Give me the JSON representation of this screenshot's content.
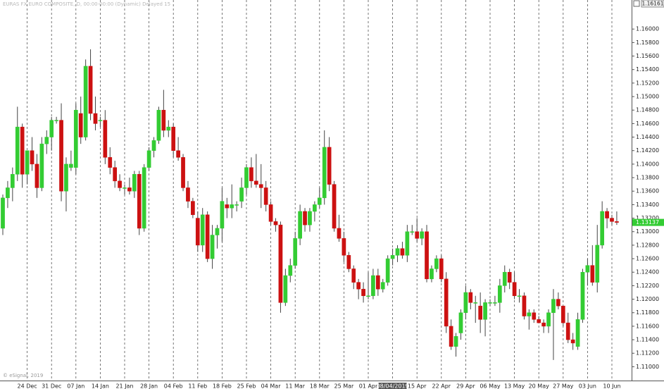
{
  "chart_data": {
    "type": "candlestick",
    "header": "EURAS FX EURO COMPOSITE, D, 00:00-00:00 (Dynamic) Delayed 15",
    "top_right_label": "1.16161",
    "copyright": "© eSignal, 2019",
    "last_price": 1.13137,
    "up_color": "#33cc33",
    "down_color": "#cc1111",
    "ylim": [
      1.109,
      1.1643
    ],
    "yticks": [
      {
        "value": 1.11,
        "label": "1.11000"
      },
      {
        "value": 1.112,
        "label": "1.11200"
      },
      {
        "value": 1.114,
        "label": "1.11400"
      },
      {
        "value": 1.116,
        "label": "1.11600"
      },
      {
        "value": 1.118,
        "label": "1.11800"
      },
      {
        "value": 1.12,
        "label": "1.12000"
      },
      {
        "value": 1.122,
        "label": "1.12200"
      },
      {
        "value": 1.124,
        "label": "1.12400"
      },
      {
        "value": 1.126,
        "label": "1.12600"
      },
      {
        "value": 1.128,
        "label": "1.12800"
      },
      {
        "value": 1.13,
        "label": "1.13000"
      },
      {
        "value": 1.132,
        "label": "1.13200"
      },
      {
        "value": 1.134,
        "label": "1.13400"
      },
      {
        "value": 1.136,
        "label": "1.13600"
      },
      {
        "value": 1.138,
        "label": "1.13800"
      },
      {
        "value": 1.14,
        "label": "1.14000"
      },
      {
        "value": 1.142,
        "label": "1.14200"
      },
      {
        "value": 1.144,
        "label": "1.14400"
      },
      {
        "value": 1.146,
        "label": "1.14600"
      },
      {
        "value": 1.148,
        "label": "1.14800"
      },
      {
        "value": 1.15,
        "label": "1.15000"
      },
      {
        "value": 1.152,
        "label": "1.15200"
      },
      {
        "value": 1.154,
        "label": "1.15400"
      },
      {
        "value": 1.156,
        "label": "1.15600"
      },
      {
        "value": 1.158,
        "label": "1.15800"
      },
      {
        "value": 1.16,
        "label": "1.16000"
      }
    ],
    "highlighted_category": "08/04/2019",
    "categories": [
      null,
      null,
      null,
      null,
      null,
      "24 Dec",
      null,
      null,
      null,
      null,
      "31 Dec",
      null,
      null,
      null,
      null,
      "07 Jan",
      null,
      null,
      null,
      null,
      "14 Jan",
      null,
      null,
      null,
      null,
      "21 Jan",
      null,
      null,
      null,
      null,
      "28 Jan",
      null,
      null,
      null,
      null,
      "04 Feb",
      null,
      null,
      null,
      null,
      "11 Feb",
      null,
      null,
      null,
      null,
      "18 Feb",
      null,
      null,
      null,
      null,
      "25 Feb",
      null,
      null,
      null,
      null,
      "04 Mar",
      null,
      null,
      null,
      null,
      "11 Mar",
      null,
      null,
      null,
      null,
      "18 Mar",
      null,
      null,
      null,
      null,
      "25 Mar",
      null,
      null,
      null,
      null,
      "01 Apr",
      null,
      null,
      null,
      null,
      "08/04/2019",
      null,
      null,
      null,
      null,
      "15 Apr",
      null,
      null,
      null,
      null,
      "22 Apr",
      null,
      null,
      null,
      null,
      "29 Apr",
      null,
      null,
      null,
      null,
      "06 May",
      null,
      null,
      null,
      null,
      "13 May",
      null,
      null,
      null,
      null,
      "20 May",
      null,
      null,
      null,
      null,
      "27 May",
      null,
      null,
      null,
      null,
      "03 Jun",
      null,
      null,
      null,
      null,
      "10 Jun",
      null
    ],
    "open": [
      1.1305,
      1.135,
      1.1365,
      1.1385,
      1.1455,
      1.1385,
      1.142,
      1.14,
      1.1365,
      1.143,
      1.144,
      1.1465,
      1.1465,
      1.136,
      1.1395,
      1.1395,
      1.1475,
      1.144,
      1.1545,
      1.1475,
      1.1465,
      1.1465,
      1.141,
      1.1395,
      1.1375,
      1.1365,
      1.1365,
      1.136,
      1.1385,
      1.1305,
      1.1395,
      1.142,
      1.1435,
      1.148,
      1.145,
      1.1455,
      1.142,
      1.141,
      1.1365,
      1.1345,
      1.132,
      1.128,
      1.1325,
      1.126,
      1.1295,
      1.1305,
      1.134,
      1.1335,
      1.134,
      1.1345,
      1.1365,
      1.1395,
      1.1375,
      1.137,
      1.1365,
      1.134,
      1.1315,
      1.131,
      1.1195,
      1.1235,
      1.125,
      1.129,
      1.133,
      1.131,
      1.133,
      1.134,
      1.135,
      1.1425,
      1.137,
      1.1305,
      1.129,
      1.1265,
      1.1245,
      1.1225,
      1.1215,
      1.1205,
      1.1205,
      1.1235,
      1.1215,
      1.1225,
      1.126,
      1.1265,
      1.1275,
      1.1265,
      1.13,
      1.13,
      1.129,
      1.13,
      1.123,
      1.1245,
      1.126,
      1.123,
      1.116,
      1.113,
      1.115,
      1.118,
      1.121,
      1.1195,
      1.119,
      1.117,
      1.1195,
      1.1195,
      1.1195,
      1.122,
      1.124,
      1.1225,
      1.1205,
      1.1205,
      1.1175,
      1.118,
      1.117,
      1.1165,
      1.116,
      1.118,
      1.12,
      1.119,
      1.1165,
      1.114,
      1.113,
      1.117,
      1.124,
      1.125,
      1.1225,
      1.128,
      1.133,
      1.132,
      1.1315
    ],
    "high": [
      1.1355,
      1.1375,
      1.1395,
      1.1485,
      1.146,
      1.142,
      1.144,
      1.1415,
      1.144,
      1.145,
      1.147,
      1.147,
      1.149,
      1.141,
      1.142,
      1.149,
      1.15,
      1.1555,
      1.157,
      1.15,
      1.147,
      1.148,
      1.1425,
      1.1405,
      1.1385,
      1.137,
      1.138,
      1.139,
      1.139,
      1.14,
      1.1425,
      1.144,
      1.1485,
      1.151,
      1.1465,
      1.146,
      1.144,
      1.1415,
      1.1375,
      1.135,
      1.133,
      1.1335,
      1.133,
      1.131,
      1.131,
      1.1365,
      1.135,
      1.137,
      1.1345,
      1.138,
      1.14,
      1.141,
      1.1415,
      1.14,
      1.1375,
      1.1345,
      1.132,
      1.1315,
      1.1245,
      1.126,
      1.13,
      1.134,
      1.1335,
      1.1335,
      1.1345,
      1.1365,
      1.145,
      1.144,
      1.1375,
      1.1325,
      1.13,
      1.127,
      1.125,
      1.123,
      1.1225,
      1.124,
      1.1245,
      1.1245,
      1.123,
      1.1265,
      1.1275,
      1.128,
      1.1285,
      1.131,
      1.131,
      1.132,
      1.1305,
      1.131,
      1.125,
      1.1265,
      1.1265,
      1.124,
      1.117,
      1.115,
      1.1185,
      1.122,
      1.1215,
      1.1205,
      1.121,
      1.12,
      1.12,
      1.1205,
      1.123,
      1.125,
      1.1245,
      1.124,
      1.1215,
      1.121,
      1.1185,
      1.1185,
      1.1175,
      1.117,
      1.1185,
      1.1215,
      1.121,
      1.119,
      1.118,
      1.115,
      1.118,
      1.1245,
      1.126,
      1.128,
      1.131,
      1.1345,
      1.1335,
      1.1325,
      1.133
    ],
    "low": [
      1.1295,
      1.1335,
      1.1345,
      1.1375,
      1.1365,
      1.137,
      1.139,
      1.135,
      1.136,
      1.1415,
      1.142,
      1.146,
      1.1345,
      1.133,
      1.139,
      1.1385,
      1.143,
      1.1435,
      1.1465,
      1.145,
      1.1455,
      1.14,
      1.1385,
      1.1365,
      1.136,
      1.1355,
      1.1355,
      1.135,
      1.1295,
      1.13,
      1.139,
      1.141,
      1.143,
      1.144,
      1.144,
      1.141,
      1.1405,
      1.136,
      1.1335,
      1.132,
      1.127,
      1.127,
      1.1255,
      1.1245,
      1.1275,
      1.1285,
      1.132,
      1.132,
      1.133,
      1.1335,
      1.1355,
      1.1365,
      1.1365,
      1.1335,
      1.133,
      1.131,
      1.13,
      1.118,
      1.119,
      1.1225,
      1.1245,
      1.128,
      1.13,
      1.13,
      1.1315,
      1.1335,
      1.134,
      1.136,
      1.13,
      1.1285,
      1.1255,
      1.124,
      1.1215,
      1.12,
      1.1195,
      1.12,
      1.12,
      1.1205,
      1.121,
      1.122,
      1.125,
      1.1255,
      1.126,
      1.1255,
      1.1295,
      1.1285,
      1.128,
      1.1225,
      1.1225,
      1.124,
      1.1225,
      1.115,
      1.1125,
      1.1115,
      1.114,
      1.117,
      1.1185,
      1.1165,
      1.115,
      1.1145,
      1.119,
      1.119,
      1.118,
      1.121,
      1.1215,
      1.12,
      1.1195,
      1.117,
      1.1155,
      1.1165,
      1.1165,
      1.115,
      1.115,
      1.111,
      1.1185,
      1.116,
      1.1135,
      1.1125,
      1.1125,
      1.1165,
      1.122,
      1.122,
      1.121,
      1.1275,
      1.1305,
      1.131,
      1.131
    ],
    "close": [
      1.135,
      1.1365,
      1.1385,
      1.1455,
      1.1385,
      1.142,
      1.14,
      1.1365,
      1.143,
      1.144,
      1.1465,
      1.1465,
      1.136,
      1.14,
      1.14,
      1.148,
      1.144,
      1.1545,
      1.1475,
      1.146,
      1.1465,
      1.141,
      1.1395,
      1.1375,
      1.1365,
      1.1365,
      1.136,
      1.1385,
      1.1305,
      1.1395,
      1.142,
      1.1435,
      1.148,
      1.145,
      1.1455,
      1.142,
      1.141,
      1.1365,
      1.1345,
      1.1325,
      1.128,
      1.1325,
      1.126,
      1.1295,
      1.1305,
      1.1345,
      1.1335,
      1.134,
      1.134,
      1.1365,
      1.1395,
      1.1375,
      1.137,
      1.1365,
      1.134,
      1.1315,
      1.131,
      1.1195,
      1.1235,
      1.125,
      1.129,
      1.133,
      1.131,
      1.133,
      1.134,
      1.135,
      1.1425,
      1.137,
      1.1305,
      1.129,
      1.1265,
      1.1245,
      1.1225,
      1.1215,
      1.1205,
      1.1205,
      1.1235,
      1.1215,
      1.1225,
      1.126,
      1.1265,
      1.1275,
      1.1265,
      1.13,
      1.13,
      1.129,
      1.13,
      1.123,
      1.1245,
      1.126,
      1.123,
      1.116,
      1.113,
      1.1145,
      1.118,
      1.121,
      1.1195,
      1.1195,
      1.117,
      1.1195,
      1.1195,
      1.1195,
      1.122,
      1.124,
      1.1225,
      1.1205,
      1.1205,
      1.1175,
      1.118,
      1.117,
      1.1165,
      1.116,
      1.118,
      1.12,
      1.119,
      1.1165,
      1.114,
      1.1135,
      1.117,
      1.124,
      1.125,
      1.1225,
      1.128,
      1.133,
      1.132,
      1.1315,
      1.13137
    ]
  }
}
